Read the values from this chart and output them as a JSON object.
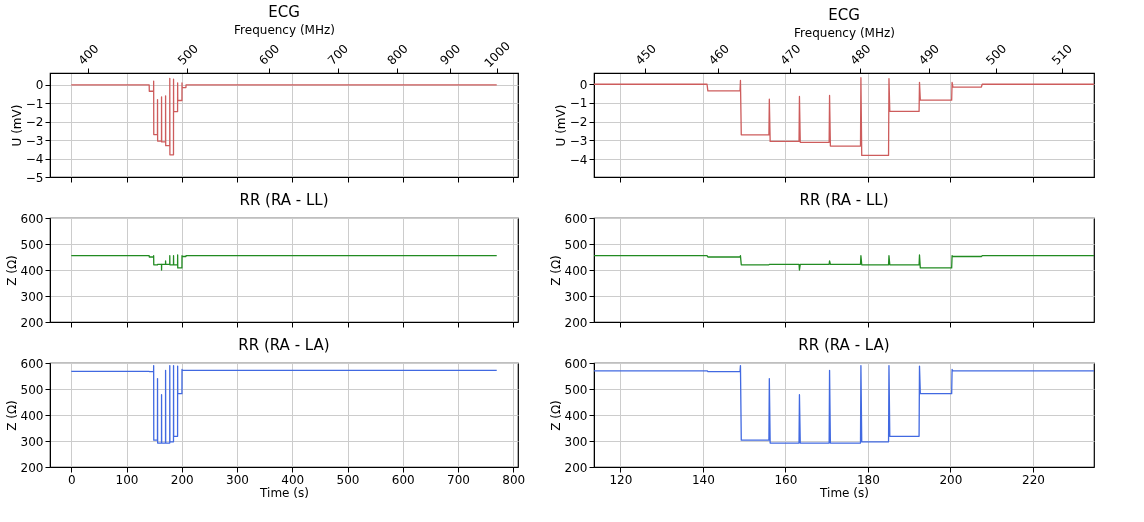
{
  "chart_data": [
    {
      "type": "line",
      "title": "ECG",
      "ylabel": "U (mV)",
      "x2label": "Frequency (MHz)",
      "grid": true,
      "tick_labels": "y",
      "x": [
        0,
        141,
        141.2,
        149,
        149.1,
        149.3,
        156,
        156.1,
        156.3,
        163.3,
        163.4,
        163.6,
        170.6,
        170.7,
        170.9,
        178.2,
        178.3,
        178.5,
        185,
        185.1,
        185.3,
        192.4,
        192.5,
        192.7,
        200.3,
        200.4,
        200.6,
        207.5,
        207.7,
        770
      ],
      "series": [
        {
          "color": "#cd5c5c",
          "values": [
            0,
            0,
            -0.35,
            -0.35,
            0.2,
            -2.7,
            -2.7,
            -0.8,
            -3.05,
            -3.05,
            -0.65,
            -3.1,
            -3.1,
            -0.6,
            -3.3,
            -3.3,
            0.35,
            -3.8,
            -3.8,
            0.3,
            -1.45,
            -1.45,
            0.1,
            -0.85,
            -0.85,
            0.1,
            -0.15,
            -0.15,
            0,
            0
          ]
        }
      ],
      "xlim": [
        -38.5,
        808.5
      ],
      "xticks": [
        0,
        100,
        200,
        300,
        400,
        500,
        600,
        700,
        800
      ],
      "ylim": [
        -5,
        0.64
      ],
      "yticks": [
        -5,
        -4,
        -3,
        -2,
        -1,
        0
      ],
      "log": "x2",
      "x2lim": [
        367.4,
        1049
      ],
      "x2ticks": [
        400,
        500,
        600,
        700,
        800,
        900,
        1000
      ]
    },
    {
      "type": "line",
      "title": "ECG",
      "ylabel": "U (mV)",
      "x2label": "Frequency (MHz)",
      "grid": true,
      "tick_labels": "y",
      "x": [
        113.6,
        141,
        141.2,
        149,
        149.1,
        149.3,
        156,
        156.1,
        156.3,
        163.3,
        163.4,
        163.6,
        170.6,
        170.7,
        170.9,
        178.2,
        178.3,
        178.5,
        185,
        185.1,
        185.3,
        192.4,
        192.5,
        192.7,
        200.3,
        200.4,
        200.6,
        207.5,
        207.7,
        234.8
      ],
      "series": [
        {
          "color": "#cd5c5c",
          "values": [
            0,
            0,
            -0.35,
            -0.35,
            0.2,
            -2.7,
            -2.7,
            -0.8,
            -3.05,
            -3.05,
            -0.65,
            -3.1,
            -3.1,
            -0.6,
            -3.3,
            -3.3,
            0.35,
            -3.8,
            -3.8,
            0.3,
            -1.45,
            -1.45,
            0.1,
            -0.85,
            -0.85,
            0.1,
            -0.15,
            -0.15,
            0,
            0
          ]
        }
      ],
      "xlim": [
        113.6,
        234.8
      ],
      "xticks": [
        120,
        140,
        160,
        180,
        200,
        220
      ],
      "ylim": [
        -4.95,
        0.6
      ],
      "yticks": [
        -4,
        -3,
        -2,
        -1,
        0
      ],
      "log": "x2",
      "x2lim": [
        443.1,
        515
      ],
      "x2ticks": [
        450,
        460,
        470,
        480,
        490,
        500,
        510
      ]
    },
    {
      "type": "line",
      "title": "RR (RA - LL)",
      "ylabel": "Z (Ω)",
      "grid": true,
      "tick_labels": "y",
      "x": [
        0,
        141,
        141.2,
        149,
        149.1,
        149.3,
        156,
        156.2,
        163.3,
        163.4,
        163.6,
        170.6,
        170.7,
        170.9,
        178.2,
        178.3,
        178.5,
        185,
        185.1,
        185.3,
        192.4,
        192.5,
        192.7,
        200.3,
        200.4,
        200.6,
        207.5,
        207.7,
        770
      ],
      "series": [
        {
          "color": "#228b22",
          "values": [
            455,
            455,
            450,
            450,
            455,
            420,
            420,
            422,
            422,
            400,
            422,
            422,
            435,
            422,
            422,
            455,
            420,
            420,
            455,
            420,
            420,
            458,
            408,
            408,
            455,
            452,
            452,
            455,
            455
          ]
        }
      ],
      "xlim": [
        -38.5,
        808.5
      ],
      "xticks": [
        0,
        100,
        200,
        300,
        400,
        500,
        600,
        700,
        800
      ],
      "ylim": [
        200,
        600
      ],
      "yticks": [
        200,
        300,
        400,
        500,
        600
      ]
    },
    {
      "type": "line",
      "title": "RR (RA - LL)",
      "ylabel": "Z (Ω)",
      "grid": true,
      "tick_labels": "y",
      "x": [
        113.6,
        141,
        141.2,
        149,
        149.1,
        149.3,
        156,
        156.2,
        163.3,
        163.4,
        163.6,
        170.6,
        170.7,
        170.9,
        178.2,
        178.3,
        178.5,
        185,
        185.1,
        185.3,
        192.4,
        192.5,
        192.7,
        200.3,
        200.4,
        200.6,
        207.5,
        207.7,
        234.8
      ],
      "series": [
        {
          "color": "#228b22",
          "values": [
            455,
            455,
            450,
            450,
            455,
            420,
            420,
            422,
            422,
            400,
            422,
            422,
            435,
            422,
            422,
            455,
            420,
            420,
            455,
            420,
            420,
            458,
            408,
            408,
            455,
            452,
            452,
            455,
            455
          ]
        }
      ],
      "xlim": [
        113.6,
        234.8
      ],
      "xticks": [
        120,
        140,
        160,
        180,
        200,
        220
      ],
      "ylim": [
        200,
        600
      ],
      "yticks": [
        200,
        300,
        400,
        500,
        600
      ]
    },
    {
      "type": "line",
      "title": "RR (RA - LA)",
      "ylabel": "Z (Ω)",
      "xlabel": "Time (s)",
      "grid": true,
      "x": [
        0,
        141,
        141.2,
        149,
        149.1,
        149.3,
        156,
        156.1,
        156.3,
        163.3,
        163.4,
        163.6,
        170.6,
        170.7,
        170.9,
        178.2,
        178.3,
        178.5,
        185,
        185.1,
        185.3,
        192.4,
        192.5,
        192.7,
        200.3,
        200.4,
        200.6,
        770
      ],
      "series": [
        {
          "color": "#4169e1",
          "values": [
            568,
            568,
            567,
            567,
            590,
            303,
            303,
            540,
            292,
            292,
            478,
            292,
            292,
            572,
            292,
            292,
            590,
            297,
            297,
            590,
            318,
            318,
            588,
            482,
            482,
            575,
            572,
            572
          ]
        }
      ],
      "xlim": [
        -38.5,
        808.5
      ],
      "xticks": [
        0,
        100,
        200,
        300,
        400,
        500,
        600,
        700,
        800
      ],
      "ylim": [
        200,
        600
      ],
      "yticks": [
        200,
        300,
        400,
        500,
        600
      ]
    },
    {
      "type": "line",
      "title": "RR (RA - LA)",
      "ylabel": "Z (Ω)",
      "xlabel": "Time (s)",
      "grid": true,
      "x": [
        113.6,
        141,
        141.2,
        149,
        149.1,
        149.3,
        156,
        156.1,
        156.3,
        163.3,
        163.4,
        163.6,
        170.6,
        170.7,
        170.9,
        178.2,
        178.3,
        178.5,
        185,
        185.1,
        185.3,
        192.4,
        192.5,
        192.7,
        200.3,
        200.4,
        200.6,
        234.8
      ],
      "series": [
        {
          "color": "#4169e1",
          "values": [
            570,
            570,
            567,
            567,
            590,
            303,
            303,
            540,
            292,
            292,
            478,
            292,
            292,
            572,
            292,
            292,
            590,
            297,
            297,
            590,
            318,
            318,
            588,
            482,
            482,
            575,
            570,
            570
          ]
        }
      ],
      "xlim": [
        113.6,
        234.8
      ],
      "xticks": [
        120,
        140,
        160,
        180,
        200,
        220
      ],
      "ylim": [
        200,
        600
      ],
      "yticks": [
        200,
        300,
        400,
        500,
        600
      ]
    }
  ]
}
